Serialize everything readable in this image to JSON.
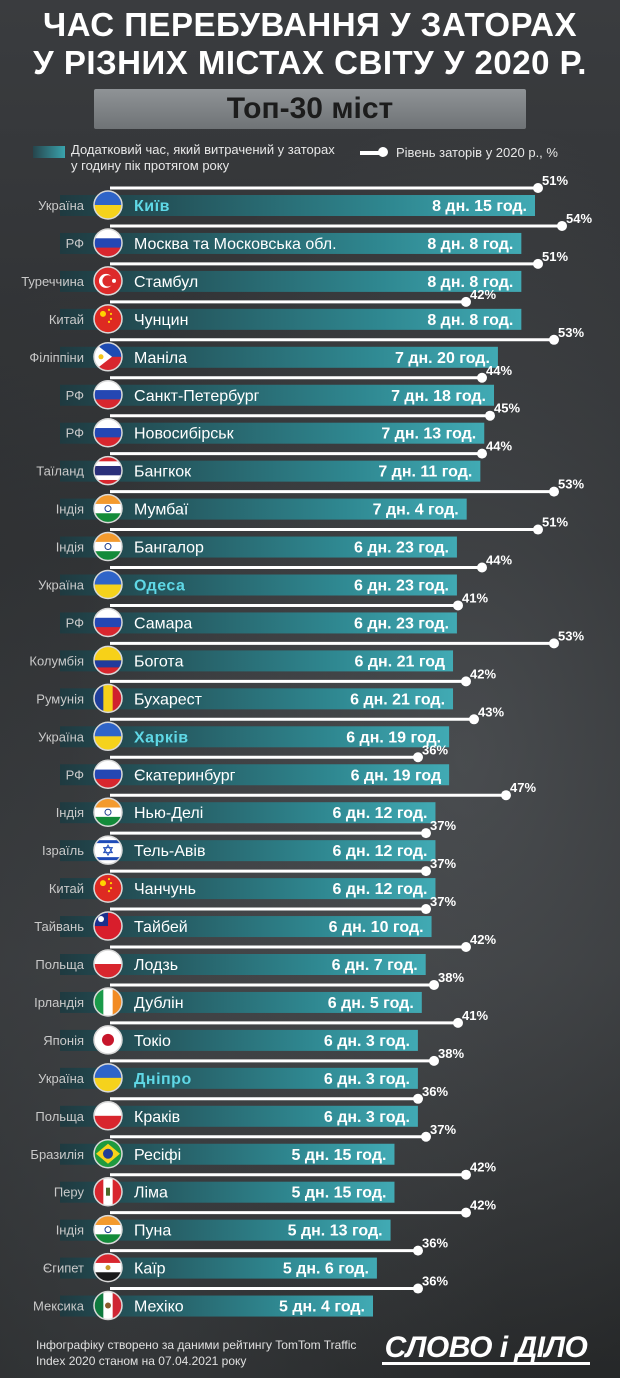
{
  "header": {
    "title_line1": "ЧАС ПЕРЕБУВАННЯ У ЗАТОРАХ",
    "title_line2": "У РІЗНИХ МІСТАХ СВІТУ У 2020 Р.",
    "subtitle": "Топ-30 міст"
  },
  "legend": {
    "bar_label": "Додатковий час, який витрачений у заторах у годину пік протягом року",
    "line_label": "Рівень заторів у 2020 р., %"
  },
  "footer": {
    "note": "Інфографіку створено за даними рейтингу TomTom Traffic Index 2020 станом на 07.04.2021 року",
    "logo": "СЛОВО і ДІЛО"
  },
  "colors": {
    "bar_dark": "#1f3a40",
    "bar_light": "#3fa7b1",
    "line": "#ffffff",
    "ukraine_highlight": "#5fd8e6"
  },
  "chart_data": {
    "type": "bar",
    "title": "Час перебування у заторах у різних містах світу у 2020 р.",
    "bar_unit": "hours",
    "line_unit": "%",
    "rows": [
      {
        "country": "Україна",
        "flag": "ukraine-flag-icon",
        "city": "Київ",
        "hours_label": "8 дн. 15 год.",
        "hours": 207,
        "congestion": 51,
        "highlight": true
      },
      {
        "country": "РФ",
        "flag": "russia-flag-icon",
        "city": "Москва та Московська обл.",
        "hours_label": "8 дн. 8 год.",
        "hours": 200,
        "congestion": 54,
        "highlight": false
      },
      {
        "country": "Туреччина",
        "flag": "turkey-flag-icon",
        "city": "Стамбул",
        "hours_label": "8 дн. 8 год.",
        "hours": 200,
        "congestion": 51,
        "highlight": false
      },
      {
        "country": "Китай",
        "flag": "china-flag-icon",
        "city": "Чунцин",
        "hours_label": "8 дн. 8 год.",
        "hours": 200,
        "congestion": 42,
        "highlight": false
      },
      {
        "country": "Філіппіни",
        "flag": "philippines-flag-icon",
        "city": "Маніла",
        "hours_label": "7 дн. 20 год.",
        "hours": 188,
        "congestion": 53,
        "highlight": false
      },
      {
        "country": "РФ",
        "flag": "russia-flag-icon",
        "city": "Санкт-Петербург",
        "hours_label": "7 дн. 18 год.",
        "hours": 186,
        "congestion": 44,
        "highlight": false
      },
      {
        "country": "РФ",
        "flag": "russia-flag-icon",
        "city": "Новосибірськ",
        "hours_label": "7 дн. 13 год.",
        "hours": 181,
        "congestion": 45,
        "highlight": false
      },
      {
        "country": "Таїланд",
        "flag": "thailand-flag-icon",
        "city": "Бангкок",
        "hours_label": "7 дн. 11 год.",
        "hours": 179,
        "congestion": 44,
        "highlight": false
      },
      {
        "country": "Індія",
        "flag": "india-flag-icon",
        "city": "Мумбаї",
        "hours_label": "7 дн. 4 год.",
        "hours": 172,
        "congestion": 53,
        "highlight": false
      },
      {
        "country": "Індія",
        "flag": "india-flag-icon",
        "city": "Бангалор",
        "hours_label": "6 дн. 23 год.",
        "hours": 167,
        "congestion": 51,
        "highlight": false
      },
      {
        "country": "Україна",
        "flag": "ukraine-flag-icon",
        "city": "Одеса",
        "hours_label": "6 дн. 23 год.",
        "hours": 167,
        "congestion": 44,
        "highlight": true
      },
      {
        "country": "РФ",
        "flag": "russia-flag-icon",
        "city": "Самара",
        "hours_label": "6 дн. 23 год.",
        "hours": 167,
        "congestion": 41,
        "highlight": false
      },
      {
        "country": "Колумбія",
        "flag": "colombia-flag-icon",
        "city": "Богота",
        "hours_label": "6 дн. 21 год",
        "hours": 165,
        "congestion": 53,
        "highlight": false
      },
      {
        "country": "Румунія",
        "flag": "romania-flag-icon",
        "city": "Бухарест",
        "hours_label": "6 дн. 21 год.",
        "hours": 165,
        "congestion": 42,
        "highlight": false
      },
      {
        "country": "Україна",
        "flag": "ukraine-flag-icon",
        "city": "Харків",
        "hours_label": "6 дн. 19 год.",
        "hours": 163,
        "congestion": 43,
        "highlight": true
      },
      {
        "country": "РФ",
        "flag": "russia-flag-icon",
        "city": "Єкатеринбург",
        "hours_label": "6 дн. 19 год",
        "hours": 163,
        "congestion": 36,
        "highlight": false
      },
      {
        "country": "Індія",
        "flag": "india-flag-icon",
        "city": "Нью-Делі",
        "hours_label": "6 дн. 12 год.",
        "hours": 156,
        "congestion": 47,
        "highlight": false
      },
      {
        "country": "Ізраїль",
        "flag": "israel-flag-icon",
        "city": "Тель-Авів",
        "hours_label": "6 дн. 12 год.",
        "hours": 156,
        "congestion": 37,
        "highlight": false
      },
      {
        "country": "Китай",
        "flag": "china-flag-icon",
        "city": "Чанчунь",
        "hours_label": "6 дн. 12 год.",
        "hours": 156,
        "congestion": 37,
        "highlight": false
      },
      {
        "country": "Тайвань",
        "flag": "taiwan-flag-icon",
        "city": "Тайбей",
        "hours_label": "6 дн. 10 год.",
        "hours": 154,
        "congestion": 37,
        "highlight": false
      },
      {
        "country": "Польща",
        "flag": "poland-flag-icon",
        "city": "Лодзь",
        "hours_label": "6 дн. 7 год.",
        "hours": 151,
        "congestion": 42,
        "highlight": false
      },
      {
        "country": "Ірландія",
        "flag": "ireland-flag-icon",
        "city": "Дублін",
        "hours_label": "6 дн. 5 год.",
        "hours": 149,
        "congestion": 38,
        "highlight": false
      },
      {
        "country": "Японія",
        "flag": "japan-flag-icon",
        "city": "Токіо",
        "hours_label": "6 дн. 3 год.",
        "hours": 147,
        "congestion": 41,
        "highlight": false
      },
      {
        "country": "Україна",
        "flag": "ukraine-flag-icon",
        "city": "Дніпро",
        "hours_label": "6 дн. 3 год.",
        "hours": 147,
        "congestion": 38,
        "highlight": true
      },
      {
        "country": "Польща",
        "flag": "poland-flag-icon",
        "city": "Краків",
        "hours_label": "6 дн. 3 год.",
        "hours": 147,
        "congestion": 36,
        "highlight": false
      },
      {
        "country": "Бразилія",
        "flag": "brazil-flag-icon",
        "city": "Ресіфі",
        "hours_label": "5 дн. 15 год.",
        "hours": 135,
        "congestion": 37,
        "highlight": false
      },
      {
        "country": "Перу",
        "flag": "peru-flag-icon",
        "city": "Ліма",
        "hours_label": "5 дн. 15 год.",
        "hours": 135,
        "congestion": 42,
        "highlight": false
      },
      {
        "country": "Індія",
        "flag": "india-flag-icon",
        "city": "Пуна",
        "hours_label": "5 дн. 13 год.",
        "hours": 133,
        "congestion": 42,
        "highlight": false
      },
      {
        "country": "Єгипет",
        "flag": "egypt-flag-icon",
        "city": "Каїр",
        "hours_label": "5 дн. 6 год.",
        "hours": 126,
        "congestion": 36,
        "highlight": false
      },
      {
        "country": "Мексика",
        "flag": "mexico-flag-icon",
        "city": "Мехіко",
        "hours_label": "5 дн. 4 год.",
        "hours": 124,
        "congestion": 36,
        "highlight": false
      }
    ]
  }
}
